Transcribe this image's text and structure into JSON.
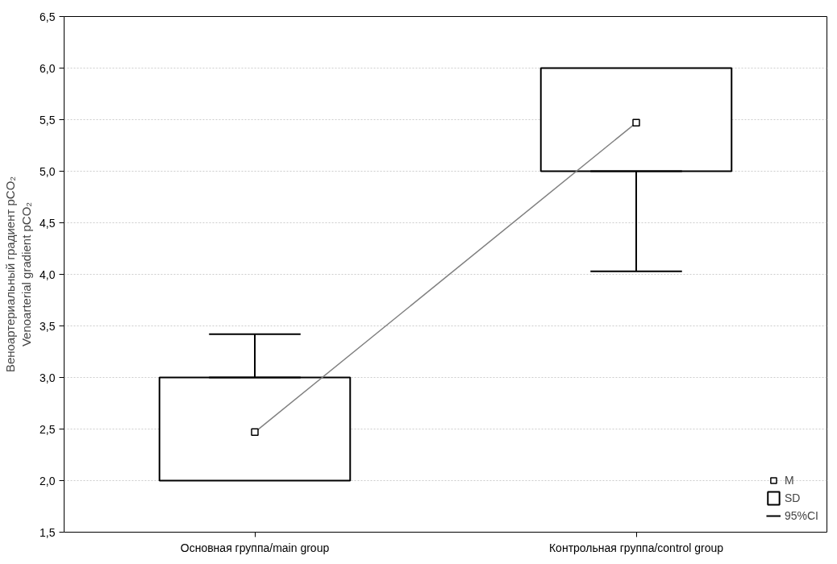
{
  "chart_data": {
    "type": "bar",
    "ylabel": "Веноартериальный градиент pCO₂\nVenoarterial gradient pCO₂",
    "categories": [
      "Основная группа/main group",
      "Контрольная группа/control group"
    ],
    "series": [
      {
        "name": "SD",
        "color": "#000000",
        "base": [
          2.0,
          5.0
        ],
        "values": [
          1.0,
          1.0
        ],
        "errors": [
          [
            3.0,
            3.42
          ],
          [
            4.03,
            5.0
          ]
        ]
      },
      {
        "name": "M",
        "type": "line",
        "color": "#808080",
        "marker": "square",
        "values": [
          2.47,
          5.47
        ]
      }
    ],
    "annotations": [
      "95%CI"
    ],
    "ylim": [
      1.5,
      6.5
    ],
    "yticks": [
      {
        "value": 1.5,
        "label": "1,5"
      },
      {
        "value": 2.0,
        "label": "2,0"
      },
      {
        "value": 2.5,
        "label": "2,5"
      },
      {
        "value": 3.0,
        "label": "3,0"
      },
      {
        "value": 3.5,
        "label": "3,5"
      },
      {
        "value": 4.0,
        "label": "4,0"
      },
      {
        "value": 4.5,
        "label": "4,5"
      },
      {
        "value": 5.0,
        "label": "5,0"
      },
      {
        "value": 5.5,
        "label": "5,5"
      },
      {
        "value": 6.0,
        "label": "6,0"
      },
      {
        "value": 6.5,
        "label": "6,5"
      }
    ],
    "grid": "y",
    "legend": "bottom right"
  }
}
